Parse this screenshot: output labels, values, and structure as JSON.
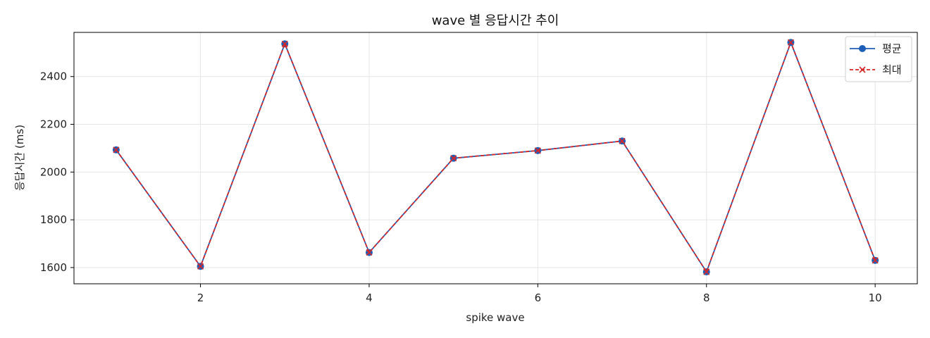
{
  "chart_data": {
    "type": "line",
    "title": "wave 별 응답시간 추이",
    "xlabel": "spike wave",
    "ylabel": "응답시간 (ms)",
    "x": [
      1,
      2,
      3,
      4,
      5,
      6,
      7,
      8,
      9,
      10
    ],
    "xlim": [
      0.5,
      10.5
    ],
    "ylim": [
      1532,
      2585
    ],
    "x_ticks": [
      2,
      4,
      6,
      8,
      10
    ],
    "y_ticks": [
      1600,
      1800,
      2000,
      2200,
      2400
    ],
    "grid": true,
    "legend_position": "top-right",
    "series": [
      {
        "name": "평균",
        "values": [
          2093,
          1605,
          2537,
          1663,
          2058,
          2090,
          2130,
          1582,
          2543,
          1630
        ],
        "color": "#1f5fb8",
        "line_style": "solid",
        "marker": "circle"
      },
      {
        "name": "최대",
        "values": [
          2093,
          1605,
          2537,
          1663,
          2058,
          2090,
          2130,
          1582,
          2543,
          1630
        ],
        "color": "#d62728",
        "line_style": "dashed",
        "marker": "x"
      }
    ]
  }
}
